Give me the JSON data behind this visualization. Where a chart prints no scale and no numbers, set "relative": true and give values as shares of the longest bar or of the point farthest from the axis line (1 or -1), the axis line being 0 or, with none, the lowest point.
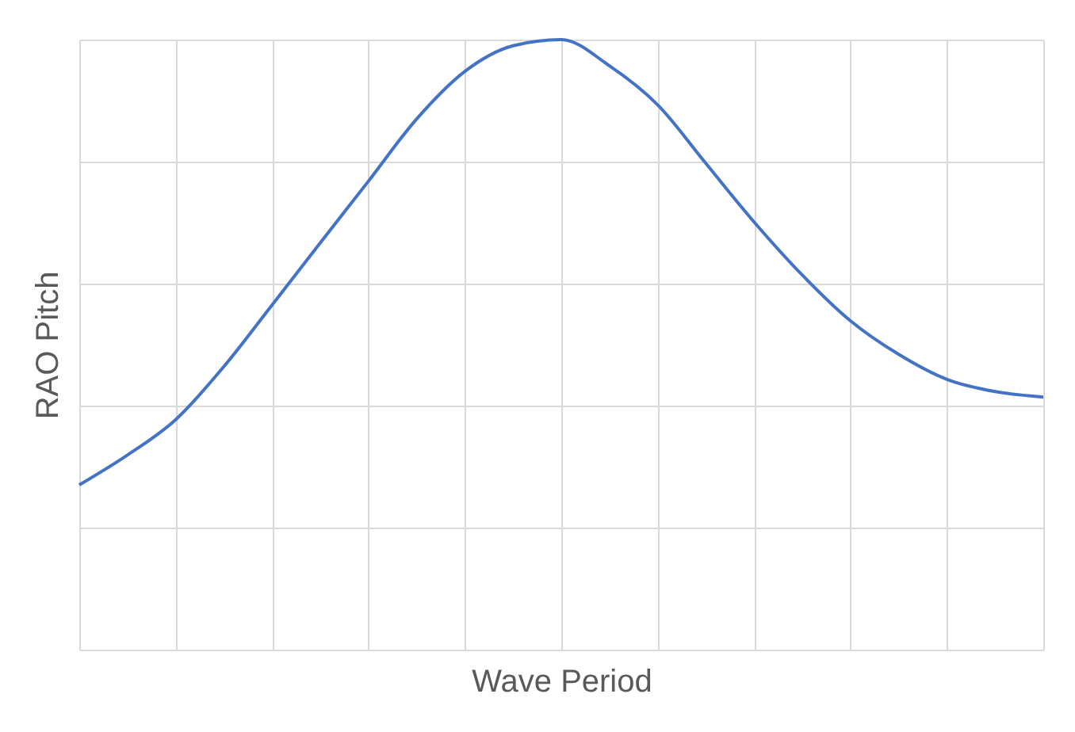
{
  "chart_data": {
    "type": "line",
    "relative": true,
    "xlabel": "Wave Period",
    "ylabel": "RAO Pitch",
    "grid": true,
    "line_style": "solid",
    "categories": [
      null,
      null,
      null,
      null,
      null,
      null,
      null,
      null,
      null,
      null,
      null,
      null,
      null,
      null,
      null,
      null,
      null,
      null,
      null,
      null,
      null
    ],
    "series": [
      {
        "color": "#4472c4",
        "values": [
          0.27,
          0.319,
          0.377,
          0.464,
          0.565,
          0.667,
          0.768,
          0.87,
          0.948,
          0.99,
          1,
          0.957,
          0.893,
          0.797,
          0.701,
          0.614,
          0.539,
          0.484,
          0.443,
          0.423,
          0.414
        ]
      }
    ]
  }
}
